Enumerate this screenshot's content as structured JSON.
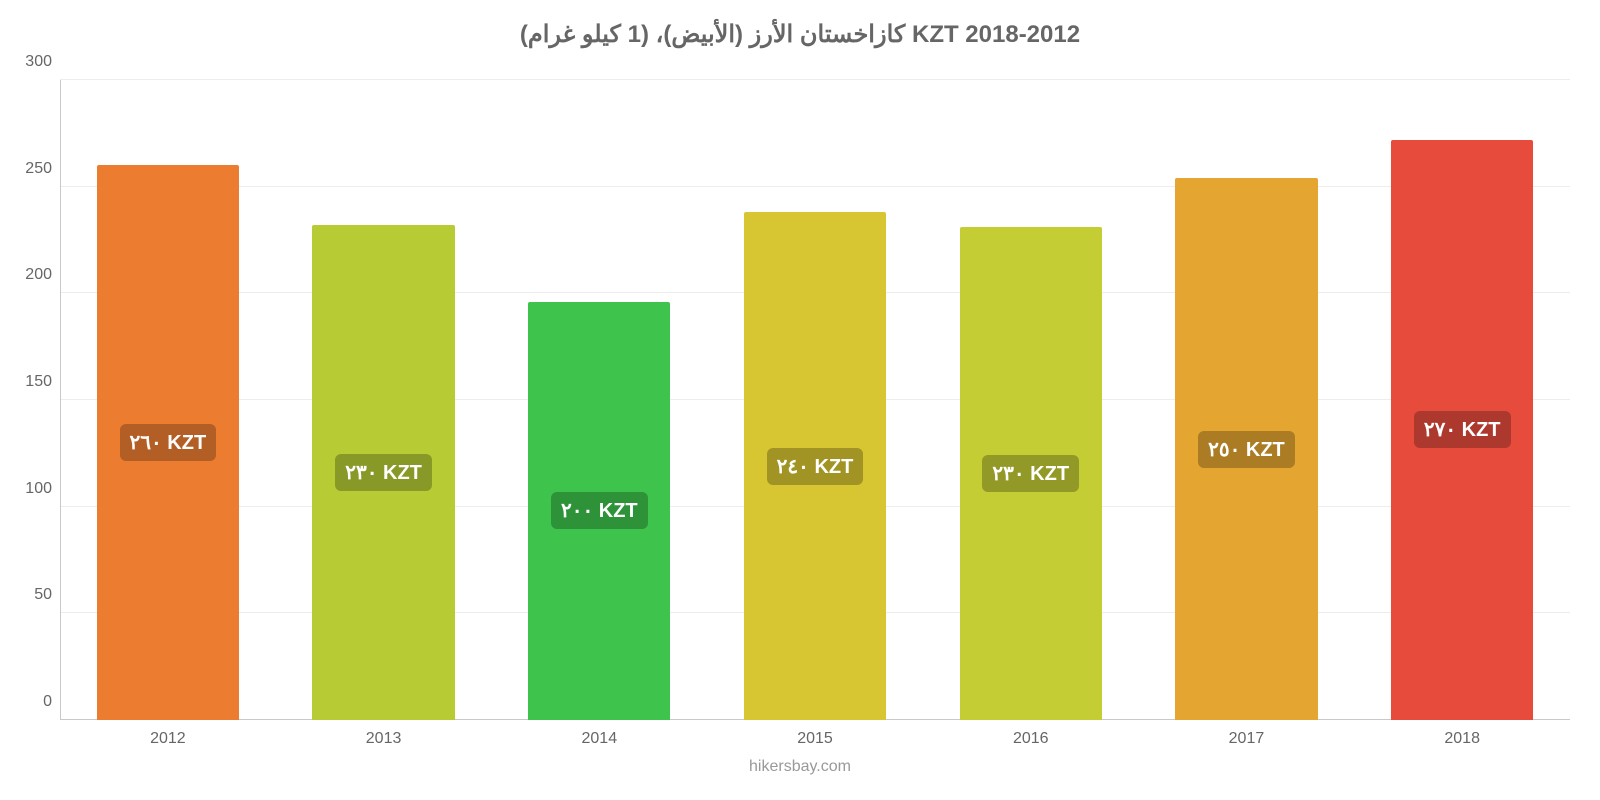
{
  "chart": {
    "type": "bar",
    "title": "كازاخستان الأرز (الأبيض)، (1 كيلو غرام) KZT 2018-2012",
    "title_fontsize": 24,
    "title_color": "#666666",
    "background_color": "#ffffff",
    "grid_color": "#e6e6e6",
    "axis_line_color": "#c9c9c9",
    "ylim": [
      0,
      300
    ],
    "ytick_step": 50,
    "yticks": [
      0,
      50,
      100,
      150,
      200,
      250,
      300
    ],
    "tick_fontsize": 16,
    "tick_color": "#666666",
    "bar_width_pct": 66,
    "data_label_fontsize": 20,
    "categories": [
      "2012",
      "2013",
      "2014",
      "2015",
      "2016",
      "2017",
      "2018"
    ],
    "values": [
      260,
      232,
      196,
      238,
      231,
      254,
      272
    ],
    "bar_colors": [
      "#ec7c30",
      "#b7cc34",
      "#3ec44c",
      "#d7c631",
      "#c4cd33",
      "#e4a630",
      "#e64b3c"
    ],
    "label_bg_colors": [
      "#b35e24",
      "#899927",
      "#2e9238",
      "#a19424",
      "#929926",
      "#ab7c24",
      "#ad382d"
    ],
    "data_labels": [
      "٢٦٠ KZT",
      "٢٣٠ KZT",
      "٢٠٠ KZT",
      "٢٤٠ KZT",
      "٢٣٠ KZT",
      "٢٥٠ KZT",
      "٢٧٠ KZT"
    ],
    "credit": "hikersbay.com",
    "credit_fontsize": 16,
    "credit_color": "#999999"
  }
}
